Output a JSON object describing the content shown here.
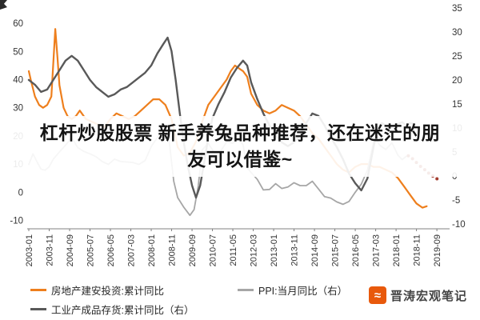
{
  "overlay": {
    "lines": [
      "杠杆炒股股票 新手养兔品种推荐，还在迷茫的朋",
      "友可以借鉴~"
    ]
  },
  "watermark": {
    "text": "晋涛宏观笔记",
    "logo_glyph": "≈",
    "logo_color": "#e8590c"
  },
  "chart_data": {
    "type": "line",
    "x_range": [
      2003.0,
      2019.99
    ],
    "left_axis": {
      "ticks": [
        60,
        50,
        40,
        30,
        20,
        10,
        0,
        -10
      ],
      "range": [
        -13,
        66
      ]
    },
    "right_axis": {
      "ticks": [
        35,
        30,
        25,
        20,
        15,
        10,
        5,
        0,
        -5,
        -10
      ],
      "range": [
        -11,
        35.3
      ]
    },
    "x_ticks": [
      {
        "x": 2003.0,
        "label": "2003-01"
      },
      {
        "x": 2003.833,
        "label": "2003-11"
      },
      {
        "x": 2004.667,
        "label": "2004-09"
      },
      {
        "x": 2005.5,
        "label": "2005-07"
      },
      {
        "x": 2006.333,
        "label": "2006-05"
      },
      {
        "x": 2007.167,
        "label": "2007-03"
      },
      {
        "x": 2008.0,
        "label": "2008-01"
      },
      {
        "x": 2008.833,
        "label": "2008-11"
      },
      {
        "x": 2009.667,
        "label": "2009-09"
      },
      {
        "x": 2010.5,
        "label": "2010-07"
      },
      {
        "x": 2011.333,
        "label": "2011-05"
      },
      {
        "x": 2012.167,
        "label": "2012-03"
      },
      {
        "x": 2013.0,
        "label": "2013-01"
      },
      {
        "x": 2013.833,
        "label": "2013-11"
      },
      {
        "x": 2014.667,
        "label": "2014-09"
      },
      {
        "x": 2015.5,
        "label": "2015-07"
      },
      {
        "x": 2016.333,
        "label": "2016-05"
      },
      {
        "x": 2017.167,
        "label": "2017-03"
      },
      {
        "x": 2018.0,
        "label": "2018-01"
      },
      {
        "x": 2018.833,
        "label": "2018-11"
      },
      {
        "x": 2019.667,
        "label": "2019-09"
      }
    ],
    "series": [
      {
        "name": "房地产建安投资:累计同比",
        "axis": "left",
        "color": "#ee7f1d",
        "style": "solid",
        "width": 2.2,
        "in_legend": true,
        "points": [
          [
            2003.0,
            43
          ],
          [
            2003.08,
            40
          ],
          [
            2003.25,
            34
          ],
          [
            2003.42,
            31
          ],
          [
            2003.58,
            30
          ],
          [
            2003.75,
            31
          ],
          [
            2003.92,
            34
          ],
          [
            2004.08,
            58
          ],
          [
            2004.17,
            48
          ],
          [
            2004.25,
            38
          ],
          [
            2004.42,
            30
          ],
          [
            2004.58,
            27
          ],
          [
            2004.75,
            26
          ],
          [
            2004.92,
            27
          ],
          [
            2005.08,
            29
          ],
          [
            2005.33,
            26
          ],
          [
            2005.58,
            25
          ],
          [
            2005.83,
            24
          ],
          [
            2006.08,
            23
          ],
          [
            2006.33,
            26
          ],
          [
            2006.58,
            28
          ],
          [
            2006.83,
            27
          ],
          [
            2007.08,
            26
          ],
          [
            2007.33,
            27
          ],
          [
            2007.58,
            29
          ],
          [
            2007.83,
            31
          ],
          [
            2008.08,
            33
          ],
          [
            2008.33,
            33
          ],
          [
            2008.58,
            31
          ],
          [
            2008.83,
            26
          ],
          [
            2009.08,
            16
          ],
          [
            2009.33,
            13
          ],
          [
            2009.58,
            14
          ],
          [
            2009.83,
            18
          ],
          [
            2010.08,
            25
          ],
          [
            2010.33,
            31
          ],
          [
            2010.58,
            34
          ],
          [
            2010.83,
            37
          ],
          [
            2011.08,
            40
          ],
          [
            2011.25,
            43
          ],
          [
            2011.42,
            45
          ],
          [
            2011.58,
            44
          ],
          [
            2011.75,
            43
          ],
          [
            2011.92,
            41
          ],
          [
            2012.08,
            35
          ],
          [
            2012.33,
            31
          ],
          [
            2012.58,
            29
          ],
          [
            2012.83,
            28
          ],
          [
            2013.08,
            29
          ],
          [
            2013.33,
            31
          ],
          [
            2013.58,
            30
          ],
          [
            2013.83,
            29
          ],
          [
            2014.08,
            27
          ],
          [
            2014.33,
            24
          ],
          [
            2014.58,
            21
          ],
          [
            2014.83,
            19
          ],
          [
            2015.08,
            16
          ],
          [
            2015.33,
            13
          ],
          [
            2015.58,
            10
          ],
          [
            2015.83,
            8
          ],
          [
            2016.08,
            7
          ],
          [
            2016.33,
            9
          ],
          [
            2016.58,
            10
          ],
          [
            2016.83,
            10
          ],
          [
            2017.08,
            9
          ],
          [
            2017.33,
            9
          ],
          [
            2017.58,
            8
          ],
          [
            2017.83,
            7
          ],
          [
            2018.08,
            5
          ],
          [
            2018.33,
            2
          ],
          [
            2018.58,
            -1
          ],
          [
            2018.83,
            -4
          ],
          [
            2019.08,
            -5.5
          ],
          [
            2019.25,
            -5
          ]
        ]
      },
      {
        "name": "PPI:当月同比（右）",
        "axis": "right",
        "color": "#a6a6a6",
        "style": "solid",
        "width": 1.8,
        "in_legend": true,
        "points": [
          [
            2003.0,
            2.4
          ],
          [
            2003.17,
            4.6
          ],
          [
            2003.33,
            3.0
          ],
          [
            2003.5,
            1.4
          ],
          [
            2003.67,
            1.2
          ],
          [
            2003.83,
            1.9
          ],
          [
            2004.0,
            3.5
          ],
          [
            2004.25,
            5.0
          ],
          [
            2004.5,
            6.4
          ],
          [
            2004.75,
            8.0
          ],
          [
            2005.0,
            5.9
          ],
          [
            2005.25,
            5.1
          ],
          [
            2005.5,
            4.6
          ],
          [
            2005.75,
            4.0
          ],
          [
            2006.0,
            3.0
          ],
          [
            2006.25,
            2.4
          ],
          [
            2006.5,
            3.5
          ],
          [
            2006.75,
            3.0
          ],
          [
            2007.0,
            2.9
          ],
          [
            2007.25,
            2.8
          ],
          [
            2007.5,
            2.4
          ],
          [
            2007.75,
            3.2
          ],
          [
            2008.0,
            6.1
          ],
          [
            2008.25,
            8.0
          ],
          [
            2008.58,
            10.1
          ],
          [
            2008.75,
            6.6
          ],
          [
            2008.92,
            -1.1
          ],
          [
            2009.08,
            -4.5
          ],
          [
            2009.33,
            -6.5
          ],
          [
            2009.58,
            -8.2
          ],
          [
            2009.75,
            -7.0
          ],
          [
            2009.92,
            -2.1
          ],
          [
            2010.08,
            5.4
          ],
          [
            2010.33,
            6.8
          ],
          [
            2010.58,
            4.8
          ],
          [
            2010.83,
            5.1
          ],
          [
            2011.08,
            7.1
          ],
          [
            2011.33,
            6.8
          ],
          [
            2011.58,
            7.5
          ],
          [
            2011.75,
            6.5
          ],
          [
            2011.92,
            1.7
          ],
          [
            2012.08,
            0.7
          ],
          [
            2012.33,
            -0.7
          ],
          [
            2012.58,
            -2.9
          ],
          [
            2012.83,
            -2.8
          ],
          [
            2013.08,
            -1.6
          ],
          [
            2013.33,
            -2.6
          ],
          [
            2013.58,
            -2.3
          ],
          [
            2013.83,
            -1.4
          ],
          [
            2014.08,
            -2.0
          ],
          [
            2014.33,
            -2.0
          ],
          [
            2014.58,
            -1.1
          ],
          [
            2014.83,
            -2.7
          ],
          [
            2015.08,
            -4.3
          ],
          [
            2015.33,
            -4.6
          ],
          [
            2015.58,
            -5.4
          ],
          [
            2015.83,
            -5.9
          ],
          [
            2016.08,
            -5.3
          ],
          [
            2016.33,
            -3.4
          ],
          [
            2016.58,
            -1.7
          ],
          [
            2016.83,
            1.2
          ],
          [
            2017.08,
            6.9
          ],
          [
            2017.17,
            7.8
          ],
          [
            2017.33,
            6.4
          ],
          [
            2017.58,
            5.5
          ],
          [
            2017.83,
            6.9
          ],
          [
            2018.08,
            4.3
          ],
          [
            2018.25,
            3.4
          ],
          [
            2018.42,
            4.1
          ]
        ]
      },
      {
        "name": "工业产成品存货:累计同比（右）",
        "axis": "right",
        "color": "#595959",
        "style": "solid",
        "width": 2.4,
        "in_legend": true,
        "points": [
          [
            2003.0,
            20
          ],
          [
            2003.25,
            19
          ],
          [
            2003.5,
            17.5
          ],
          [
            2003.75,
            18
          ],
          [
            2004.0,
            20
          ],
          [
            2004.25,
            22
          ],
          [
            2004.5,
            24
          ],
          [
            2004.75,
            25
          ],
          [
            2005.0,
            24
          ],
          [
            2005.25,
            22
          ],
          [
            2005.5,
            20
          ],
          [
            2005.75,
            18.5
          ],
          [
            2006.0,
            17.5
          ],
          [
            2006.25,
            16.5
          ],
          [
            2006.5,
            17
          ],
          [
            2006.75,
            18
          ],
          [
            2007.0,
            18.5
          ],
          [
            2007.25,
            19.5
          ],
          [
            2007.5,
            20.5
          ],
          [
            2007.75,
            21.5
          ],
          [
            2008.0,
            23
          ],
          [
            2008.25,
            25.5
          ],
          [
            2008.5,
            27.5
          ],
          [
            2008.67,
            28.8
          ],
          [
            2008.83,
            26
          ],
          [
            2009.0,
            20
          ],
          [
            2009.17,
            13
          ],
          [
            2009.33,
            7
          ],
          [
            2009.5,
            2
          ],
          [
            2009.67,
            -2
          ],
          [
            2009.83,
            -4.5
          ],
          [
            2010.0,
            -2
          ],
          [
            2010.17,
            3
          ],
          [
            2010.33,
            8
          ],
          [
            2010.5,
            12
          ],
          [
            2010.75,
            15
          ],
          [
            2011.0,
            17.5
          ],
          [
            2011.25,
            20.5
          ],
          [
            2011.5,
            22.5
          ],
          [
            2011.75,
            24
          ],
          [
            2011.92,
            23
          ],
          [
            2012.08,
            19.5
          ],
          [
            2012.33,
            16
          ],
          [
            2012.58,
            13
          ],
          [
            2012.83,
            10.5
          ],
          [
            2013.08,
            8.5
          ],
          [
            2013.33,
            7
          ],
          [
            2013.58,
            6.2
          ],
          [
            2013.83,
            7
          ],
          [
            2014.08,
            8.5
          ],
          [
            2014.33,
            11
          ],
          [
            2014.58,
            13
          ],
          [
            2014.83,
            12.5
          ],
          [
            2015.08,
            10.5
          ],
          [
            2015.33,
            8
          ],
          [
            2015.58,
            6
          ],
          [
            2015.83,
            3.5
          ],
          [
            2016.08,
            0.5
          ],
          [
            2016.33,
            -1.5
          ],
          [
            2016.58,
            -3
          ],
          [
            2016.83,
            -0.5
          ],
          [
            2017.08,
            6
          ],
          [
            2017.25,
            10
          ],
          [
            2017.42,
            11
          ],
          [
            2017.58,
            10.5
          ],
          [
            2017.75,
            10
          ],
          [
            2017.92,
            10.5
          ],
          [
            2018.08,
            10.8
          ],
          [
            2018.25,
            11.2
          ],
          [
            2018.42,
            10.5
          ],
          [
            2018.58,
            11
          ],
          [
            2018.75,
            10.8
          ]
        ]
      },
      {
        "name": "forecast-dots",
        "axis": "right",
        "color": "#a33c2e",
        "style": "dotted",
        "width": 2,
        "in_legend": false,
        "points": [
          [
            2018.5,
            4.2
          ],
          [
            2018.67,
            3.6
          ],
          [
            2018.83,
            2.8
          ],
          [
            2019.0,
            2.0
          ],
          [
            2019.17,
            1.3
          ],
          [
            2019.33,
            0.6
          ],
          [
            2019.5,
            0.0
          ],
          [
            2019.67,
            -0.6
          ]
        ]
      }
    ]
  }
}
